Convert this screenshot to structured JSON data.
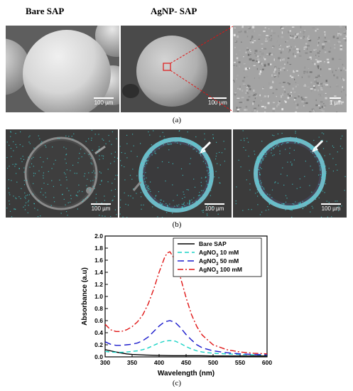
{
  "headers": {
    "bare": "Bare SAP",
    "agnp": "AgNP- SAP"
  },
  "row_a": {
    "label": "(a)",
    "scalebars": [
      "100 µm",
      "100 µm",
      "1 µm"
    ]
  },
  "row_b": {
    "label": "(b)",
    "scalebars": [
      "100 µm",
      "100 µm",
      "100 µm"
    ]
  },
  "row_c": {
    "label": "(c)"
  },
  "colors": {
    "bare": "#000000",
    "ag10": "#19d3c5",
    "ag50": "#1a1acc",
    "ag100": "#e01515",
    "eds_dots": "#3fd8d8"
  },
  "chart_data": {
    "type": "line",
    "xlabel": "Wavelength (nm)",
    "ylabel": "Absorbance (a.u)",
    "xlim": [
      300,
      600
    ],
    "ylim": [
      0.0,
      2.0
    ],
    "xticks": [
      300,
      350,
      400,
      450,
      500,
      550,
      600
    ],
    "yticks": [
      0.0,
      0.2,
      0.4,
      0.6,
      0.8,
      1.0,
      1.2,
      1.4,
      1.6,
      1.8,
      2.0
    ],
    "legend_position": "top-right",
    "grid": false,
    "series": [
      {
        "name": "Bare SAP",
        "style": "solid",
        "x": [
          300,
          310,
          320,
          330,
          340,
          350,
          375,
          400,
          425,
          450,
          475,
          500,
          525,
          550,
          575,
          600
        ],
        "y": [
          0.12,
          0.1,
          0.08,
          0.065,
          0.05,
          0.04,
          0.03,
          0.025,
          0.02,
          0.02,
          0.02,
          0.015,
          0.015,
          0.015,
          0.015,
          0.015
        ]
      },
      {
        "name": "AgNO3 10 mM",
        "name_main": "AgNO",
        "name_sub": "3",
        "name_rest": " 10 mM",
        "style": "dash",
        "x": [
          300,
          310,
          320,
          330,
          340,
          350,
          360,
          370,
          380,
          390,
          400,
          410,
          420,
          430,
          440,
          450,
          460,
          470,
          480,
          500,
          525,
          550,
          575,
          600
        ],
        "y": [
          0.09,
          0.08,
          0.075,
          0.075,
          0.08,
          0.09,
          0.1,
          0.12,
          0.15,
          0.19,
          0.23,
          0.26,
          0.27,
          0.26,
          0.22,
          0.17,
          0.13,
          0.1,
          0.08,
          0.06,
          0.05,
          0.04,
          0.035,
          0.03
        ]
      },
      {
        "name": "AgNO3 50 mM",
        "name_main": "AgNO",
        "name_sub": "3",
        "name_rest": " 50 mM",
        "style": "longdash",
        "x": [
          300,
          310,
          320,
          330,
          340,
          350,
          360,
          370,
          380,
          390,
          400,
          410,
          420,
          430,
          440,
          450,
          460,
          470,
          480,
          500,
          525,
          550,
          575,
          600
        ],
        "y": [
          0.25,
          0.21,
          0.19,
          0.19,
          0.2,
          0.21,
          0.23,
          0.27,
          0.33,
          0.42,
          0.51,
          0.58,
          0.6,
          0.57,
          0.48,
          0.37,
          0.28,
          0.2,
          0.15,
          0.1,
          0.07,
          0.05,
          0.04,
          0.035
        ]
      },
      {
        "name": "AgNO3 100 mM",
        "name_main": "AgNO",
        "name_sub": "3",
        "name_rest": " 100 mM",
        "style": "dashdot",
        "x": [
          300,
          310,
          320,
          330,
          340,
          350,
          360,
          370,
          380,
          390,
          400,
          410,
          415,
          420,
          430,
          440,
          450,
          460,
          470,
          480,
          500,
          525,
          550,
          575,
          600
        ],
        "y": [
          0.54,
          0.45,
          0.42,
          0.42,
          0.45,
          0.5,
          0.58,
          0.7,
          0.88,
          1.12,
          1.4,
          1.64,
          1.72,
          1.74,
          1.6,
          1.3,
          0.98,
          0.7,
          0.5,
          0.36,
          0.2,
          0.12,
          0.08,
          0.06,
          0.05
        ]
      }
    ]
  }
}
